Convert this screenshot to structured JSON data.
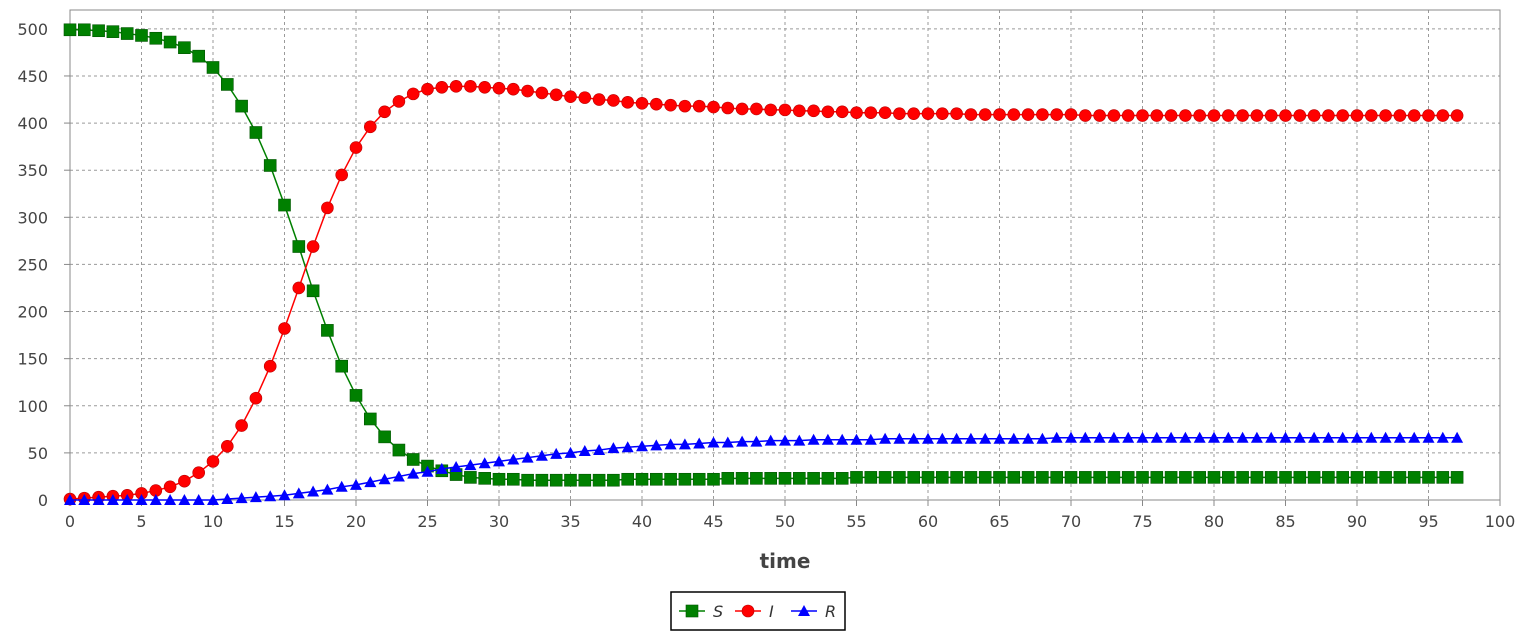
{
  "chart_data": {
    "type": "line",
    "title": "",
    "xlabel": "time",
    "ylabel": "",
    "xlim": [
      0,
      100
    ],
    "ylim": [
      0,
      520
    ],
    "x_ticks": [
      0,
      5,
      10,
      15,
      20,
      25,
      30,
      35,
      40,
      45,
      50,
      55,
      60,
      65,
      70,
      75,
      80,
      85,
      90,
      95,
      100
    ],
    "y_ticks": [
      0,
      50,
      100,
      150,
      200,
      250,
      300,
      350,
      400,
      450,
      500
    ],
    "grid": true,
    "legend_position": "bottom-center",
    "x": [
      0,
      1,
      2,
      3,
      4,
      5,
      6,
      7,
      8,
      9,
      10,
      11,
      12,
      13,
      14,
      15,
      16,
      17,
      18,
      19,
      20,
      21,
      22,
      23,
      24,
      25,
      26,
      27,
      28,
      29,
      30,
      31,
      32,
      33,
      34,
      35,
      36,
      37,
      38,
      39,
      40,
      41,
      42,
      43,
      44,
      45,
      46,
      47,
      48,
      49,
      50,
      51,
      52,
      53,
      54,
      55,
      56,
      57,
      58,
      59,
      60,
      61,
      62,
      63,
      64,
      65,
      66,
      67,
      68,
      69,
      70,
      71,
      72,
      73,
      74,
      75,
      76,
      77,
      78,
      79,
      80,
      81,
      82,
      83,
      84,
      85,
      86,
      87,
      88,
      89,
      90,
      91,
      92,
      93,
      94,
      95,
      96,
      97
    ],
    "series": [
      {
        "name": "S",
        "color": "#008000",
        "marker": "square",
        "values": [
          499,
          499,
          498,
          497,
          495,
          493,
          490,
          486,
          480,
          471,
          459,
          441,
          418,
          390,
          355,
          313,
          269,
          222,
          180,
          142,
          111,
          86,
          67,
          53,
          43,
          36,
          31,
          27,
          24,
          23,
          22,
          22,
          21,
          21,
          21,
          21,
          21,
          21,
          21,
          22,
          22,
          22,
          22,
          22,
          22,
          22,
          23,
          23,
          23,
          23,
          23,
          23,
          23,
          23,
          23,
          24,
          24,
          24,
          24,
          24,
          24,
          24,
          24,
          24,
          24,
          24,
          24,
          24,
          24,
          24,
          24,
          24,
          24,
          24,
          24,
          24,
          24,
          24,
          24,
          24,
          24,
          24,
          24,
          24,
          24,
          24,
          24,
          24,
          24,
          24,
          24,
          24,
          24,
          24,
          24,
          24,
          24,
          24
        ]
      },
      {
        "name": "I",
        "color": "#ff0000",
        "marker": "circle",
        "values": [
          1,
          2,
          3,
          4,
          5,
          7,
          10,
          14,
          20,
          29,
          41,
          57,
          79,
          108,
          142,
          182,
          225,
          269,
          310,
          345,
          374,
          396,
          412,
          423,
          431,
          436,
          438,
          439,
          439,
          438,
          437,
          436,
          434,
          432,
          430,
          428,
          427,
          425,
          424,
          422,
          421,
          420,
          419,
          418,
          418,
          417,
          416,
          415,
          415,
          414,
          414,
          413,
          413,
          412,
          412,
          411,
          411,
          411,
          410,
          410,
          410,
          410,
          410,
          409,
          409,
          409,
          409,
          409,
          409,
          409,
          409,
          408,
          408,
          408,
          408,
          408,
          408,
          408,
          408,
          408,
          408,
          408,
          408,
          408,
          408,
          408,
          408,
          408,
          408,
          408,
          408,
          408,
          408,
          408,
          408,
          408,
          408,
          408
        ]
      },
      {
        "name": "R",
        "color": "#0000ff",
        "marker": "triangle",
        "values": [
          0,
          0,
          0,
          0,
          0,
          0,
          0,
          0,
          0,
          0,
          0,
          1,
          2,
          3,
          4,
          5,
          7,
          9,
          11,
          14,
          16,
          19,
          22,
          25,
          28,
          30,
          33,
          35,
          37,
          39,
          41,
          43,
          45,
          47,
          49,
          50,
          52,
          53,
          55,
          56,
          57,
          58,
          59,
          59,
          60,
          61,
          61,
          62,
          62,
          63,
          63,
          63,
          64,
          64,
          64,
          64,
          64,
          65,
          65,
          65,
          65,
          65,
          65,
          65,
          65,
          65,
          65,
          65,
          65,
          66,
          66,
          66,
          66,
          66,
          66,
          66,
          66,
          66,
          66,
          66,
          66,
          66,
          66,
          66,
          66,
          66,
          66,
          66,
          66,
          66,
          66,
          66,
          66,
          66,
          66,
          66,
          66,
          66
        ]
      }
    ]
  },
  "style": {
    "grid_color": "#9a9a9a",
    "frame_color": "#888888",
    "background": "#ffffff"
  }
}
